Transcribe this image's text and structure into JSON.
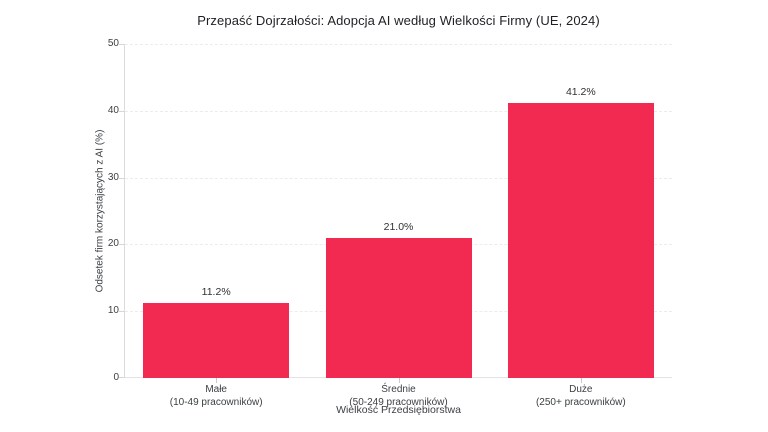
{
  "title": "Przepaść Dojrzałości: Adopcja AI według Wielkości Firmy (UE, 2024)",
  "chart_data": {
    "type": "bar",
    "title": "Przepaść Dojrzałości: Adopcja AI według Wielkości Firmy (UE, 2024)",
    "categories": [
      "Małe",
      "Średnie",
      "Duże"
    ],
    "category_sublabels": [
      "(10-49 pracowników)",
      "(50-249 pracowników)",
      "(250+ pracowników)"
    ],
    "values": [
      11.2,
      21.0,
      41.2
    ],
    "value_labels": [
      "11.2%",
      "21.0%",
      "41.2%"
    ],
    "xlabel": "Wielkość Przedsiębiorstwa",
    "ylabel": "Odsetek firm korzystających z AI (%)",
    "ylim": [
      0,
      50
    ],
    "yticks": [
      0,
      10,
      20,
      30,
      40,
      50
    ],
    "ytick_labels": [
      "0",
      "10",
      "20",
      "30",
      "40",
      "50"
    ],
    "grid": true,
    "gridline_style": "dashed",
    "legend_position": "none",
    "bar_color": "#F22951",
    "background_color": "#FFFFFF",
    "gridline_color": "#ECECEC",
    "axis_line_color": "#DCDCDC",
    "text_color": "#3C4043",
    "title_color": "#1F2024"
  }
}
